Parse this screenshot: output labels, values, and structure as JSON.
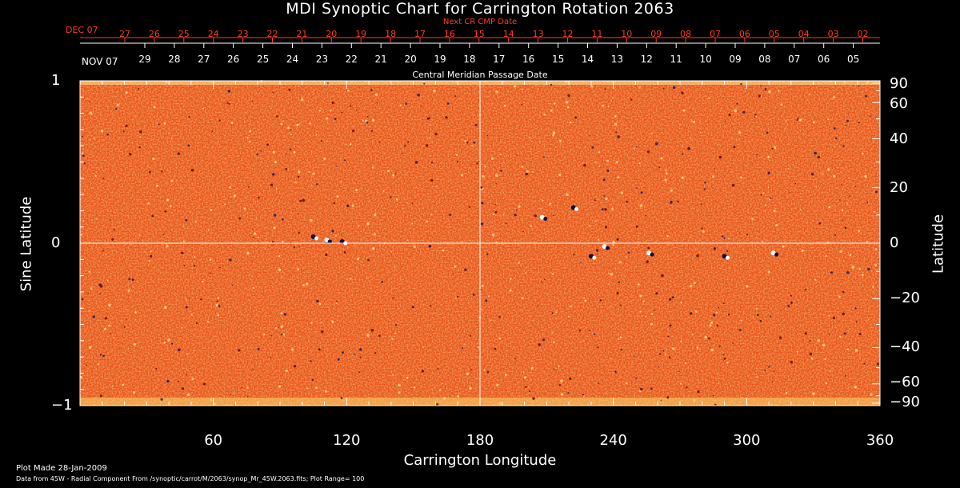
{
  "title": "MDI Synoptic Chart for Carrington Rotation 2063",
  "next_cr_label": "Next CR CMP Date",
  "next_cr_month": "DEC 07",
  "next_cr_days": [
    "27",
    "26",
    "25",
    "24",
    "23",
    "22",
    "21",
    "20",
    "19",
    "18",
    "17",
    "16",
    "15",
    "14",
    "13",
    "12",
    "11",
    "10",
    "09",
    "08",
    "07",
    "06",
    "05",
    "04",
    "03",
    "02"
  ],
  "cmp_month": "NOV 07",
  "cmp_days": [
    "29",
    "28",
    "27",
    "26",
    "25",
    "24",
    "23",
    "22",
    "21",
    "20",
    "19",
    "18",
    "17",
    "16",
    "15",
    "14",
    "13",
    "12",
    "11",
    "10",
    "09",
    "08",
    "07",
    "06",
    "05"
  ],
  "cmp_label": "Central Meridian Passage Date",
  "footer": {
    "plot_made": "Plot Made 28-Jan-2009",
    "data_line": "Data from 45W - Radial Component From /synoptic/carrot/M/2063/synop_Mr_45W.2063.fits; Plot Range=  100"
  },
  "colors": {
    "background": "#000000",
    "map_base": "#e8541a",
    "red_text": "#ff3b1f",
    "axis": "#ffffff"
  },
  "chart_data": {
    "type": "heatmap",
    "title": "MDI Synoptic Chart for Carrington Rotation 2063",
    "xlabel": "Carrington Longitude",
    "ylabel": "Sine Latitude",
    "y2label": "Latitude",
    "xlim": [
      0,
      360
    ],
    "ylim": [
      -1,
      1
    ],
    "x_ticks": [
      "60",
      "120",
      "180",
      "240",
      "300",
      "360"
    ],
    "x_tick_values": [
      60,
      120,
      180,
      240,
      300,
      360
    ],
    "y_ticks": [
      "1",
      "0",
      "−1"
    ],
    "y_tick_values": [
      1,
      0,
      -1
    ],
    "lat_ticks": [
      "90",
      "60",
      "40",
      "20",
      "0",
      "−20",
      "−40",
      "−60",
      "−90"
    ],
    "lat_tick_values": [
      90,
      60,
      40,
      20,
      0,
      -20,
      -40,
      -60,
      -90
    ],
    "plot_range": 100,
    "gridlines": {
      "x": [
        180
      ],
      "y": [
        0
      ]
    }
  }
}
